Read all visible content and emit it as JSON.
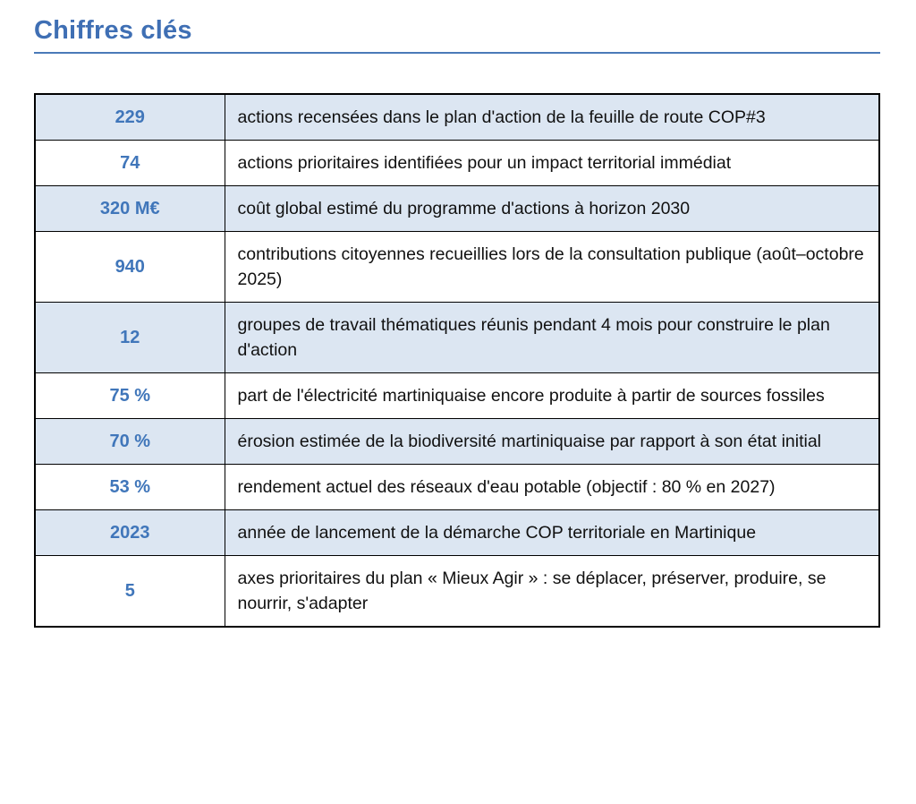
{
  "page": {
    "title": "Chiffres clés",
    "colors": {
      "title": "#3f6fb4",
      "rule": "#4a7ab8",
      "number": "#4076ba",
      "row_alt": "#dce6f2",
      "border": "#000000",
      "text": "#111111"
    }
  },
  "table": {
    "rows": [
      {
        "value": "229",
        "description": "actions recensées dans le plan d'action de la feuille de route COP#3"
      },
      {
        "value": "74",
        "description": "actions prioritaires identifiées pour un impact territorial immédiat"
      },
      {
        "value": "320 M€",
        "description": "coût global estimé du programme d'actions à horizon 2030"
      },
      {
        "value": "940",
        "description": "contributions citoyennes recueillies lors de la consultation publique (août–octobre 2025)"
      },
      {
        "value": "12",
        "description": "groupes de travail thématiques réunis pendant 4 mois pour construire le plan d'action"
      },
      {
        "value": "75 %",
        "description": "part de l'électricité martiniquaise encore produite à partir de sources fossiles"
      },
      {
        "value": "70 %",
        "description": "érosion estimée de la biodiversité martiniquaise par rapport à son état initial"
      },
      {
        "value": "53 %",
        "description": "rendement actuel des réseaux d'eau potable (objectif : 80 % en 2027)"
      },
      {
        "value": "2023",
        "description": "année de lancement de la démarche COP territoriale en Martinique"
      },
      {
        "value": "5",
        "description": "axes prioritaires du plan « Mieux Agir » : se déplacer, préserver, produire, se nourrir, s'adapter"
      }
    ]
  }
}
